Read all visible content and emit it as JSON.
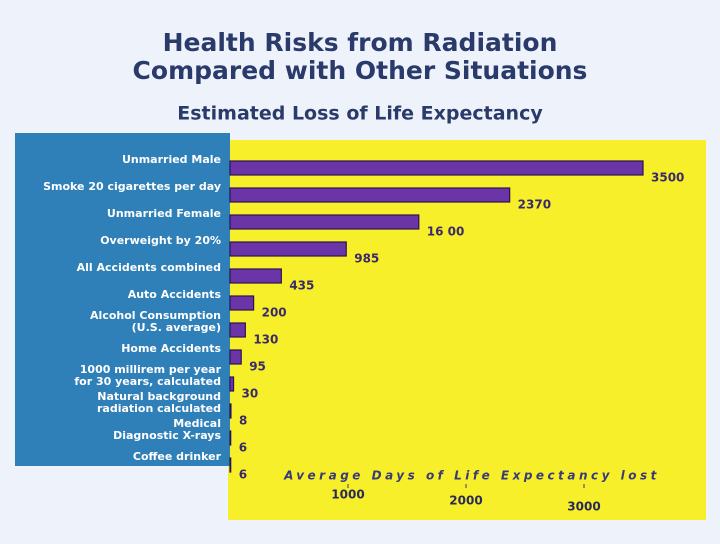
{
  "chart_data": {
    "type": "bar",
    "orientation": "horizontal",
    "title": [
      "Health Risks from Radiation",
      "Compared with Other Situations"
    ],
    "subtitle": "Estimated Loss of Life Expectancy",
    "x_label": "Average Days of Life Expectancy lost",
    "categories": [
      [
        "Unmarried Male"
      ],
      [
        "Smoke 20 cigarettes per day"
      ],
      [
        "Unmarried Female"
      ],
      [
        "Overweight by 20%"
      ],
      [
        "All Accidents combined"
      ],
      [
        "Auto Accidents"
      ],
      [
        "Alcohol Consumption",
        "(U.S. average)"
      ],
      [
        "Home Accidents"
      ],
      [
        "1000 millirem per year",
        "for 30 years, calculated"
      ],
      [
        "Natural background",
        "radiation calculated"
      ],
      [
        "Medical",
        "Diagnostic X-rays"
      ],
      [
        "Coffee drinker"
      ]
    ],
    "values": [
      3500,
      2370,
      1600,
      985,
      435,
      200,
      130,
      95,
      30,
      8,
      6,
      6
    ],
    "value_labels": [
      "3500",
      "2370",
      "16 00",
      "985",
      "435",
      "200",
      "130",
      "95",
      "30",
      "8",
      "6",
      "6"
    ],
    "color": "#6b35a8",
    "xlim": [
      0,
      4000
    ],
    "xticks": [
      1000,
      2000,
      3000
    ]
  }
}
